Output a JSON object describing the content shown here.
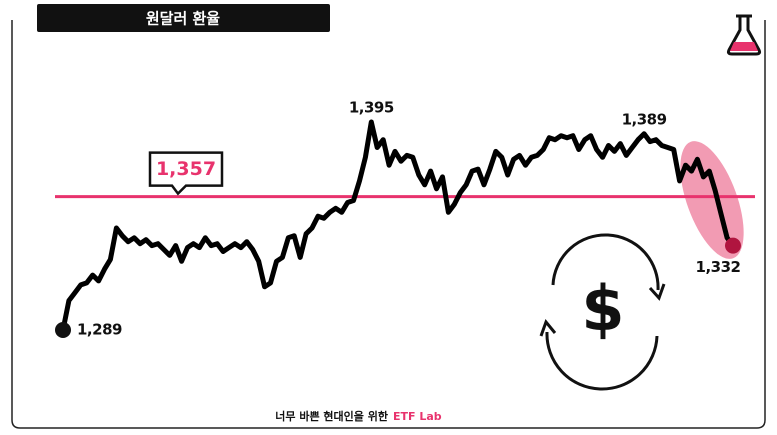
{
  "chart_data": {
    "type": "line",
    "title": "원달러 환율",
    "color": "#000000",
    "values": [
      1289,
      1304,
      1308,
      1312,
      1313,
      1317,
      1314,
      1320,
      1325,
      1341,
      1337,
      1334,
      1336,
      1333,
      1335,
      1332,
      1333,
      1330,
      1327,
      1332,
      1324,
      1331,
      1333,
      1331,
      1336,
      1332,
      1333,
      1329,
      1331,
      1333,
      1331,
      1334,
      1330,
      1324,
      1311,
      1313,
      1324,
      1326,
      1336,
      1337,
      1326,
      1338,
      1341,
      1347,
      1346,
      1349,
      1351,
      1349,
      1354,
      1355,
      1365,
      1377,
      1395,
      1382,
      1386,
      1373,
      1380,
      1375,
      1378,
      1377,
      1368,
      1363,
      1370,
      1361,
      1367,
      1349,
      1353,
      1359,
      1363,
      1370,
      1371,
      1363,
      1371,
      1380,
      1377,
      1368,
      1376,
      1378,
      1373,
      1377,
      1378,
      1381,
      1387,
      1386,
      1388,
      1387,
      1388,
      1381,
      1386,
      1388,
      1381,
      1377,
      1383,
      1380,
      1384,
      1378,
      1382,
      1386,
      1389,
      1385,
      1386,
      1383,
      1382,
      1381,
      1365,
      1373,
      1370,
      1376,
      1367,
      1370,
      1360,
      1348,
      1336,
      1332
    ],
    "value_labels": [
      "1,289",
      null,
      null,
      null,
      null,
      null,
      null,
      null,
      null,
      null,
      null,
      null,
      null,
      null,
      null,
      null,
      null,
      null,
      null,
      null,
      null,
      null,
      null,
      null,
      null,
      null,
      null,
      null,
      null,
      null,
      null,
      null,
      null,
      null,
      null,
      null,
      null,
      null,
      null,
      null,
      null,
      null,
      null,
      null,
      null,
      null,
      null,
      null,
      null,
      null,
      null,
      null,
      "1,395",
      null,
      null,
      null,
      null,
      null,
      null,
      null,
      null,
      null,
      null,
      null,
      null,
      null,
      null,
      null,
      null,
      null,
      null,
      null,
      null,
      null,
      null,
      null,
      null,
      null,
      null,
      null,
      null,
      null,
      null,
      null,
      null,
      null,
      null,
      null,
      null,
      null,
      null,
      null,
      null,
      null,
      null,
      null,
      null,
      null,
      "1,389",
      null,
      null,
      null,
      null,
      null,
      null,
      null,
      null,
      null,
      null,
      null,
      null,
      null,
      null,
      "1,332"
    ],
    "reference_line": {
      "value": 1357,
      "label": "1,357",
      "color": "#e8336d"
    }
  },
  "footer": {
    "text": "너무 바쁜 현대인을 위한",
    "brand": "ETF Lab"
  }
}
